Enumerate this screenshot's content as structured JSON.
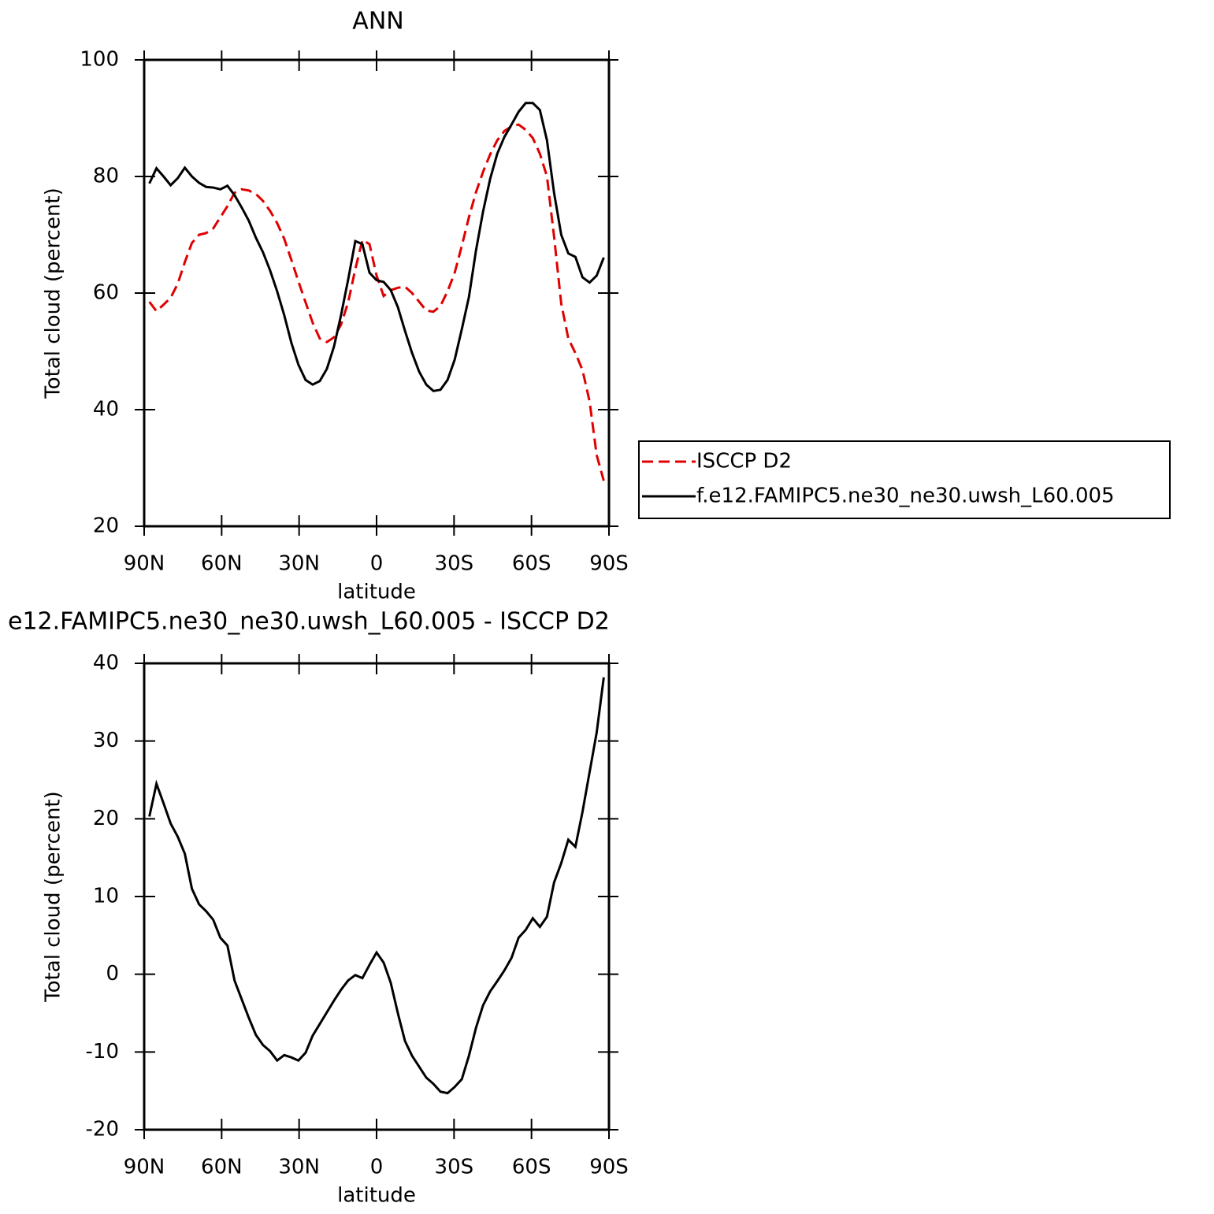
{
  "chart_data": [
    {
      "type": "line",
      "title": "ANN",
      "xlabel": "latitude",
      "ylabel": "Total cloud (percent)",
      "xlim": [
        90,
        -90
      ],
      "xticks": [
        {
          "value": 90,
          "label": "90N"
        },
        {
          "value": 60,
          "label": "60N"
        },
        {
          "value": 30,
          "label": "30N"
        },
        0,
        {
          "value": -30,
          "label": "30S"
        },
        {
          "value": -60,
          "label": "60S"
        },
        {
          "value": -90,
          "label": "90S"
        }
      ],
      "ylim": [
        20,
        100
      ],
      "yticks": [
        20,
        40,
        60,
        80,
        100
      ],
      "legend": "right",
      "x": [
        88,
        85.25,
        82.5,
        79.75,
        77,
        74.25,
        71.5,
        68.75,
        66,
        63.25,
        60.5,
        57.75,
        55,
        52.25,
        49.5,
        46.75,
        44,
        41.25,
        38.5,
        35.75,
        33,
        30.25,
        27.5,
        24.75,
        22,
        19.25,
        16.5,
        13.75,
        11,
        8.25,
        5.5,
        2.75,
        0,
        -2.75,
        -5.5,
        -8.25,
        -11,
        -13.75,
        -16.5,
        -19.25,
        -22,
        -24.75,
        -27.5,
        -30.25,
        -33,
        -35.75,
        -38.5,
        -41.25,
        -44,
        -46.75,
        -49.5,
        -52.25,
        -55,
        -57.75,
        -60.5,
        -63.25,
        -66,
        -68.75,
        -71.5,
        -74.25,
        -77,
        -79.75,
        -82.5,
        -85.25,
        -88
      ],
      "series": [
        {
          "name": "ISCCP D2",
          "color": "#e00000",
          "dashed": true,
          "values": [
            58.5,
            56.9,
            58,
            59.2,
            61.6,
            65.3,
            68.6,
            70,
            70.3,
            71.1,
            73,
            74.9,
            77.2,
            77.8,
            77.6,
            77,
            75.8,
            74.1,
            72,
            69.3,
            65.7,
            62,
            58.4,
            54.9,
            52.2,
            51.6,
            52.4,
            54.6,
            58.4,
            64.1,
            69.1,
            68.4,
            63,
            59.5,
            60.5,
            60.9,
            61.1,
            60,
            58.5,
            57,
            56.8,
            57.8,
            60.3,
            63.5,
            68.1,
            73,
            77.3,
            80.8,
            83.8,
            86.2,
            87.8,
            88.6,
            88.9,
            88,
            86.6,
            83.9,
            80,
            69.7,
            58.2,
            52.2,
            49.7,
            46.8,
            41.4,
            32.2,
            27.8
          ]
        },
        {
          "name": "f.e12.FAMIPC5.ne30_ne30.uwsh_L60.005",
          "color": "#000000",
          "dashed": false,
          "values": [
            78.8,
            81.4,
            80,
            78.5,
            79.7,
            81.5,
            80,
            78.9,
            78.2,
            78.1,
            77.8,
            78.4,
            76.8,
            74.7,
            72.4,
            69.5,
            67,
            63.9,
            60.3,
            56.2,
            51.5,
            47.7,
            45.1,
            44.3,
            44.9,
            47,
            50.8,
            56.2,
            62.3,
            68.9,
            68.4,
            63.5,
            62.2,
            61.9,
            60.5,
            57.6,
            53.5,
            49.7,
            46.5,
            44.3,
            43.2,
            43.4,
            45.1,
            48.6,
            53.8,
            59.3,
            67.3,
            74,
            79.6,
            83.9,
            86.8,
            88.9,
            91.1,
            92.6,
            92.6,
            91.4,
            86.2,
            77.2,
            70,
            66.8,
            66.2,
            62.7,
            61.8,
            63,
            66.1
          ]
        }
      ]
    },
    {
      "type": "line",
      "title": "e12.FAMIPC5.ne30_ne30.uwsh_L60.005 - ISCCP D2",
      "xlabel": "latitude",
      "ylabel": "Total cloud (percent)",
      "xlim": [
        90,
        -90
      ],
      "xticks": [
        {
          "value": 90,
          "label": "90N"
        },
        {
          "value": 60,
          "label": "60N"
        },
        {
          "value": 30,
          "label": "30N"
        },
        0,
        {
          "value": -30,
          "label": "30S"
        },
        {
          "value": -60,
          "label": "60S"
        },
        {
          "value": -90,
          "label": "90S"
        }
      ],
      "ylim": [
        -20,
        40
      ],
      "yticks": [
        -20,
        -10,
        0,
        10,
        20,
        30,
        40
      ],
      "x": [
        88,
        85.25,
        82.5,
        79.75,
        77,
        74.25,
        71.5,
        68.75,
        66,
        63.25,
        60.5,
        57.75,
        55,
        52.25,
        49.5,
        46.75,
        44,
        41.25,
        38.5,
        35.75,
        33,
        30.25,
        27.5,
        24.75,
        22,
        19.25,
        16.5,
        13.75,
        11,
        8.25,
        5.5,
        2.75,
        0,
        -2.75,
        -5.5,
        -8.25,
        -11,
        -13.75,
        -16.5,
        -19.25,
        -22,
        -24.75,
        -27.5,
        -30.25,
        -33,
        -35.75,
        -38.5,
        -41.25,
        -44,
        -46.75,
        -49.5,
        -52.25,
        -55,
        -57.75,
        -60.5,
        -63.25,
        -66,
        -68.75,
        -71.5,
        -74.25,
        -77,
        -79.75,
        -82.5,
        -85.25,
        -88
      ],
      "color": "#000000",
      "values": [
        20.3,
        24.5,
        22,
        19.4,
        17.7,
        15.5,
        11,
        9,
        8.1,
        7,
        4.7,
        3.7,
        -0.8,
        -3.2,
        -5.6,
        -7.8,
        -9.1,
        -9.9,
        -11.1,
        -10.4,
        -10.7,
        -11.1,
        -10.1,
        -7.9,
        -6.4,
        -4.9,
        -3.4,
        -2,
        -0.8,
        -0.1,
        -0.5,
        1.2,
        2.8,
        1.5,
        -1.1,
        -5,
        -8.6,
        -10.5,
        -11.9,
        -13.3,
        -14.1,
        -15.1,
        -15.3,
        -14.5,
        -13.5,
        -10.5,
        -6.9,
        -4,
        -2.2,
        -0.9,
        0.5,
        2.1,
        4.7,
        5.7,
        7.2,
        6.1,
        7.4,
        11.8,
        14.3,
        17.3,
        16.4,
        20.9,
        26,
        31.1,
        38.2
      ]
    }
  ]
}
